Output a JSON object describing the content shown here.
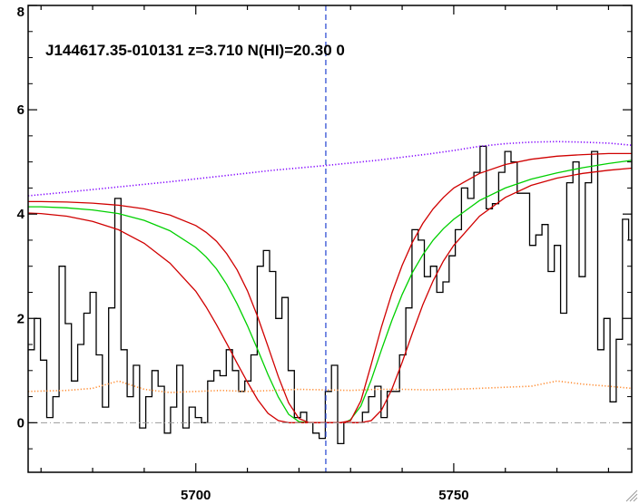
{
  "chart_data": {
    "type": "line",
    "title": "J144617.35-010131 z=3.710 N(HI)=20.30 0",
    "xlabel": "",
    "ylabel": "",
    "xlim": [
      5667.5,
      5784.5
    ],
    "ylim": [
      -0.95,
      8.0
    ],
    "x_ticks": [
      5700,
      5750
    ],
    "y_ticks": [
      0,
      2,
      4,
      6,
      8
    ],
    "vertical_marker_x": 5725.2,
    "reference_line_y": 0,
    "grid": false,
    "legend": "none",
    "colors": {
      "flux": "#000000",
      "fit": "#00d000",
      "fit_bounds": "#d00000",
      "continuum": "#8000ff",
      "error": "#ff8c32",
      "marker": "#2040d0",
      "zero": "#999999"
    },
    "series": [
      {
        "style": "step",
        "color": "#000000",
        "x": [
          5667.5,
          5668.7,
          5669.9,
          5671.1,
          5672.3,
          5673.5,
          5674.7,
          5675.9,
          5677.1,
          5678.3,
          5679.5,
          5680.7,
          5681.9,
          5683.1,
          5684.3,
          5685.5,
          5686.7,
          5687.9,
          5689.1,
          5690.3,
          5691.5,
          5692.7,
          5693.9,
          5695.1,
          5696.3,
          5697.5,
          5698.7,
          5699.9,
          5701.1,
          5702.3,
          5703.5,
          5704.7,
          5705.9,
          5707.1,
          5708.3,
          5709.5,
          5710.7,
          5711.9,
          5713.1,
          5714.3,
          5715.5,
          5716.7,
          5717.9,
          5719.1,
          5720.3,
          5721.5,
          5722.7,
          5723.9,
          5725.1,
          5726.3,
          5727.5,
          5728.7,
          5729.9,
          5731.1,
          5732.3,
          5733.5,
          5734.7,
          5735.9,
          5737.1,
          5738.3,
          5739.5,
          5740.7,
          5741.9,
          5743.1,
          5744.3,
          5745.5,
          5746.7,
          5747.9,
          5749.1,
          5750.3,
          5751.5,
          5752.7,
          5753.9,
          5755.1,
          5756.3,
          5757.5,
          5758.7,
          5759.9,
          5761.1,
          5762.3,
          5763.5,
          5764.7,
          5765.9,
          5767.1,
          5768.3,
          5769.5,
          5770.7,
          5771.9,
          5773.1,
          5774.3,
          5775.5,
          5776.7,
          5777.9,
          5779.1,
          5780.3,
          5781.5,
          5782.7,
          5783.9
        ],
        "values": [
          1.4,
          2.0,
          1.2,
          0.1,
          0.5,
          3.0,
          1.9,
          0.8,
          1.5,
          2.1,
          2.5,
          1.3,
          0.3,
          2.2,
          4.3,
          1.4,
          0.5,
          1.1,
          -0.1,
          0.5,
          1.0,
          0.7,
          -0.2,
          0.3,
          1.1,
          -0.1,
          0.3,
          0.1,
          0.0,
          0.8,
          1.0,
          0.9,
          1.4,
          1.0,
          0.6,
          0.8,
          1.3,
          3.0,
          3.3,
          2.9,
          2.0,
          2.4,
          1.0,
          0.1,
          0.2,
          0.0,
          -0.2,
          -0.3,
          0.6,
          1.1,
          -0.4,
          0.0,
          0.0,
          0.0,
          0.2,
          0.5,
          0.7,
          0.1,
          0.6,
          0.6,
          1.3,
          2.2,
          3.7,
          3.5,
          2.8,
          3.0,
          2.5,
          2.7,
          3.2,
          3.7,
          4.5,
          4.3,
          4.8,
          5.3,
          4.1,
          4.2,
          4.8,
          5.2,
          5.0,
          4.4,
          4.4,
          3.4,
          3.6,
          3.8,
          2.9,
          3.4,
          2.1,
          4.6,
          5.0,
          2.8,
          4.6,
          5.2,
          1.4,
          2.0,
          0.4,
          1.6,
          3.9,
          3.5
        ]
      },
      {
        "style": "line",
        "color": "#00d000",
        "x": [
          5667.5,
          5670,
          5675,
          5680,
          5685,
          5690,
          5695,
          5700,
          5702,
          5704,
          5706,
          5708,
          5710,
          5712,
          5714,
          5716,
          5718,
          5720,
          5722,
          5724,
          5726,
          5728,
          5729,
          5730,
          5732,
          5734,
          5736,
          5738,
          5740,
          5742,
          5744,
          5746,
          5748,
          5750,
          5755,
          5760,
          5765,
          5770,
          5775,
          5780,
          5784.5
        ],
        "values": [
          4.14,
          4.14,
          4.12,
          4.08,
          4.01,
          3.88,
          3.68,
          3.36,
          3.18,
          2.95,
          2.65,
          2.28,
          1.86,
          1.4,
          0.92,
          0.49,
          0.16,
          0.02,
          0.0,
          0.0,
          0.0,
          0.0,
          0.01,
          0.06,
          0.32,
          0.82,
          1.4,
          1.96,
          2.46,
          2.88,
          3.22,
          3.5,
          3.72,
          3.9,
          4.26,
          4.5,
          4.67,
          4.79,
          4.89,
          4.97,
          5.03
        ]
      },
      {
        "style": "line",
        "color": "#d00000",
        "x": [
          5667.5,
          5670,
          5675,
          5680,
          5685,
          5690,
          5695,
          5700,
          5702,
          5704,
          5706,
          5708,
          5710,
          5712,
          5714,
          5716,
          5718,
          5720,
          5722,
          5724,
          5726,
          5728,
          5730,
          5732,
          5734,
          5736,
          5738,
          5740,
          5742,
          5744,
          5746,
          5748,
          5750,
          5755,
          5760,
          5765,
          5770,
          5775,
          5780,
          5784.5
        ],
        "values": [
          4.24,
          4.24,
          4.23,
          4.21,
          4.17,
          4.1,
          3.98,
          3.78,
          3.65,
          3.48,
          3.24,
          2.93,
          2.53,
          2.03,
          1.46,
          0.88,
          0.38,
          0.08,
          0.0,
          0.0,
          0.0,
          0.0,
          0.04,
          0.42,
          1.12,
          1.84,
          2.48,
          3.02,
          3.46,
          3.82,
          4.1,
          4.32,
          4.5,
          4.78,
          4.95,
          5.05,
          5.11,
          5.14,
          5.16,
          5.16
        ]
      },
      {
        "style": "line",
        "color": "#d00000",
        "x": [
          5667.5,
          5670,
          5675,
          5680,
          5685,
          5690,
          5695,
          5700,
          5702,
          5704,
          5706,
          5708,
          5710,
          5712,
          5714,
          5716,
          5718,
          5720,
          5722,
          5724,
          5726,
          5728,
          5730,
          5732,
          5734,
          5736,
          5738,
          5740,
          5742,
          5744,
          5746,
          5748,
          5750,
          5755,
          5760,
          5765,
          5770,
          5775,
          5780,
          5784.5
        ],
        "values": [
          4.02,
          4.01,
          3.96,
          3.86,
          3.7,
          3.44,
          3.06,
          2.52,
          2.22,
          1.88,
          1.52,
          1.14,
          0.78,
          0.44,
          0.18,
          0.04,
          0.0,
          0.0,
          0.0,
          0.0,
          0.0,
          0.0,
          0.0,
          0.0,
          0.04,
          0.24,
          0.64,
          1.16,
          1.72,
          2.26,
          2.72,
          3.1,
          3.4,
          3.96,
          4.32,
          4.55,
          4.69,
          4.78,
          4.84,
          4.88
        ]
      },
      {
        "style": "dotted",
        "color": "#8000ff",
        "x": [
          5667.5,
          5675,
          5685,
          5695,
          5705,
          5715,
          5725,
          5735,
          5745,
          5750,
          5755,
          5760,
          5765,
          5770,
          5775,
          5780,
          5784.5
        ],
        "values": [
          4.35,
          4.42,
          4.52,
          4.62,
          4.73,
          4.84,
          4.93,
          5.03,
          5.15,
          5.22,
          5.3,
          5.35,
          5.38,
          5.39,
          5.38,
          5.36,
          5.32
        ]
      },
      {
        "style": "dotted",
        "color": "#ff8c32",
        "x": [
          5667.5,
          5675,
          5680,
          5685,
          5690,
          5695,
          5700,
          5705,
          5710,
          5715,
          5720,
          5725,
          5730,
          5735,
          5740,
          5745,
          5750,
          5755,
          5760,
          5765,
          5770,
          5775,
          5780,
          5784.5
        ],
        "values": [
          0.6,
          0.62,
          0.66,
          0.8,
          0.64,
          0.58,
          0.6,
          0.62,
          0.6,
          0.62,
          0.64,
          0.63,
          0.62,
          0.64,
          0.64,
          0.63,
          0.64,
          0.66,
          0.68,
          0.7,
          0.8,
          0.74,
          0.7,
          0.66
        ]
      }
    ]
  }
}
